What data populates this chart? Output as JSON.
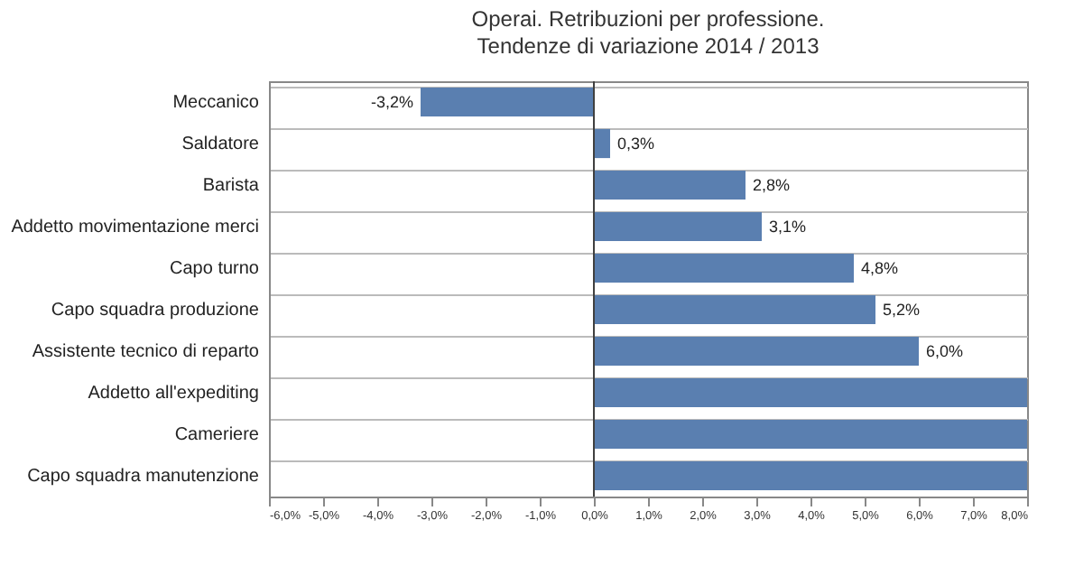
{
  "chart_data": {
    "type": "bar",
    "orientation": "horizontal",
    "title": "Operai. Retribuzioni per professione.",
    "subtitle": "Tendenze di variazione 2014 / 2013",
    "categories": [
      "Meccanico",
      "Saldatore",
      "Barista",
      "Addetto movimentazione merci",
      "Capo turno",
      "Capo squadra produzione",
      "Assistente tecnico di reparto",
      "Addetto all'expediting",
      "Cameriere",
      "Capo squadra manutenzione"
    ],
    "values": [
      -3.2,
      0.3,
      2.8,
      3.1,
      4.8,
      5.2,
      6.0,
      8.0,
      8.0,
      8.0
    ],
    "value_labels": [
      "-3,2%",
      "0,3%",
      "2,8%",
      "3,1%",
      "4,8%",
      "5,2%",
      "6,0%",
      null,
      null,
      null
    ],
    "color": "#5a7fb0",
    "xlim": [
      -6,
      8
    ],
    "xticks": [
      {
        "value": -6,
        "label": "-6,0%"
      },
      {
        "value": -5,
        "label": "-5,0%"
      },
      {
        "value": -4,
        "label": "-4,0%"
      },
      {
        "value": -3,
        "label": "-3,0%"
      },
      {
        "value": -2,
        "label": "-2,0%"
      },
      {
        "value": -1,
        "label": "-1,0%"
      },
      {
        "value": 0,
        "label": "0,0%"
      },
      {
        "value": 1,
        "label": "1,0%"
      },
      {
        "value": 2,
        "label": "2,0%"
      },
      {
        "value": 3,
        "label": "3,0%"
      },
      {
        "value": 4,
        "label": "4,0%"
      },
      {
        "value": 5,
        "label": "5,0%"
      },
      {
        "value": 6,
        "label": "6,0%"
      },
      {
        "value": 7,
        "label": "7,0%"
      },
      {
        "value": 8,
        "label": "8,0%"
      }
    ],
    "ref_lines": [
      {
        "axis": "x",
        "value": 0,
        "color": "#404040"
      }
    ],
    "grid": "y"
  }
}
